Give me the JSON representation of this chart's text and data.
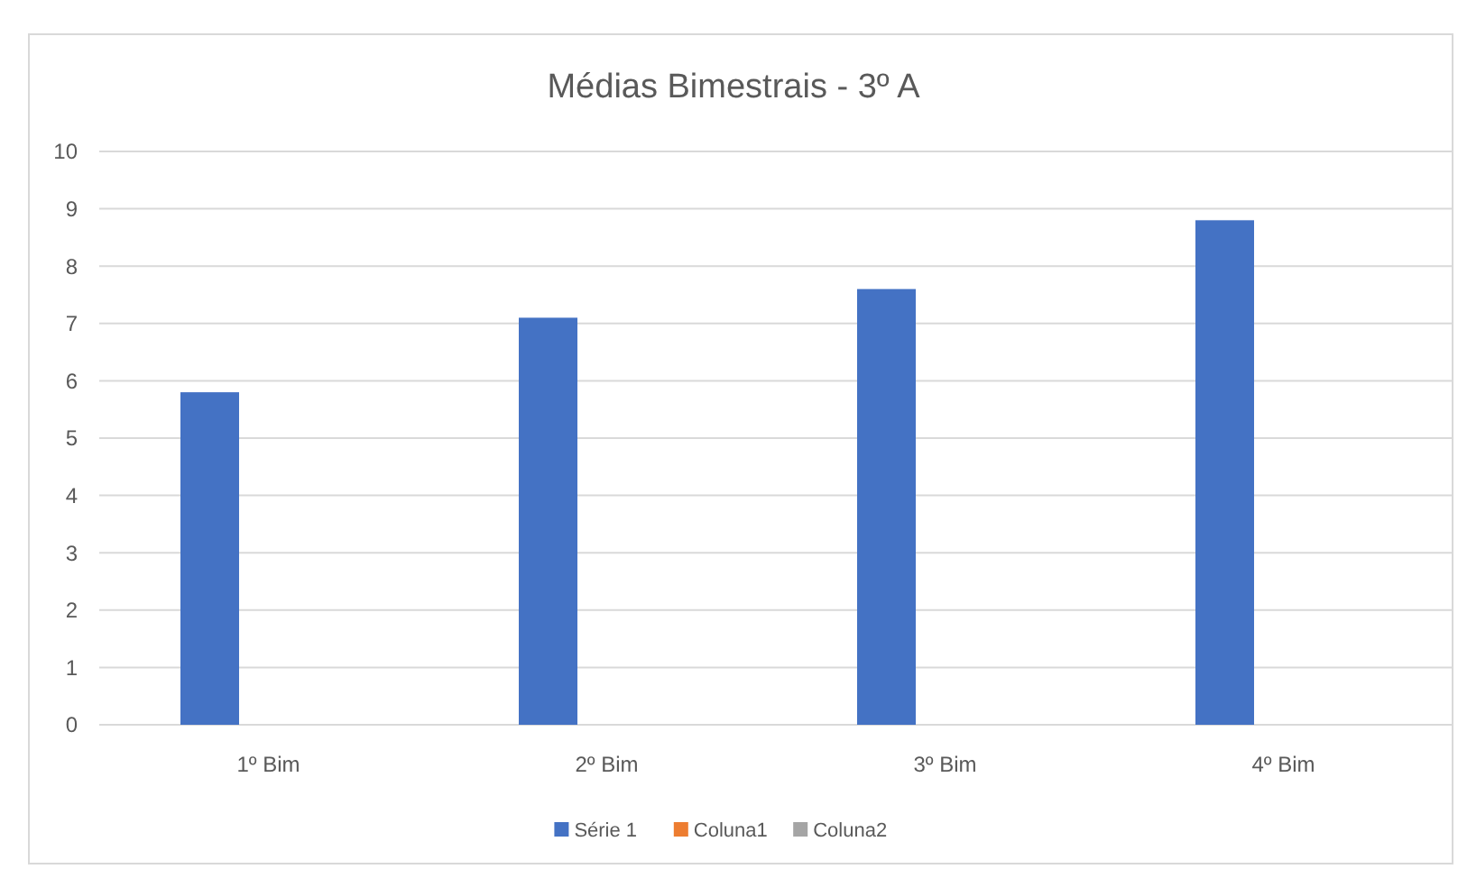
{
  "chart_data": {
    "type": "bar",
    "title": "Médias Bimestrais - 3º A",
    "categories": [
      "1º Bim",
      "2º Bim",
      "3º Bim",
      "4º Bim"
    ],
    "series": [
      {
        "name": "Série 1",
        "color": "#4472c4",
        "values": [
          5.8,
          7.1,
          7.6,
          8.8
        ]
      },
      {
        "name": "Coluna1",
        "color": "#ed7d31",
        "values": [
          null,
          null,
          null,
          null
        ]
      },
      {
        "name": "Coluna2",
        "color": "#a5a5a5",
        "values": [
          null,
          null,
          null,
          null
        ]
      }
    ],
    "ylim": [
      0,
      10
    ],
    "yticks": [
      0,
      1,
      2,
      3,
      4,
      5,
      6,
      7,
      8,
      9,
      10
    ],
    "grid": "y",
    "legend": "bottom"
  }
}
